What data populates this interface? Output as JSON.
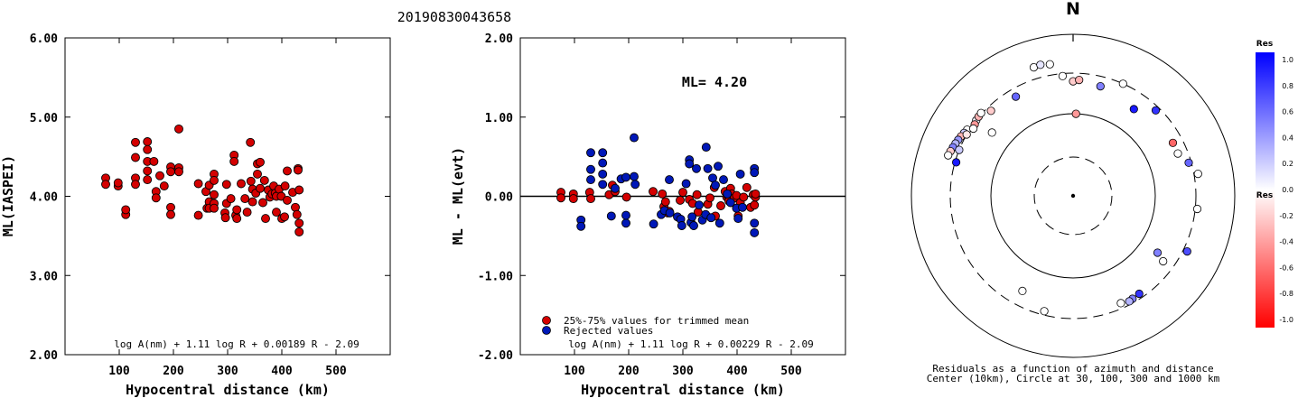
{
  "title": "20190830043658",
  "chart_data": [
    {
      "type": "scatter",
      "xlabel": "Hypocentral distance (km)",
      "ylabel": "ML(IASPEI)",
      "xlim": [
        0,
        600
      ],
      "ylim": [
        2.0,
        6.0
      ],
      "xticks": [
        "100",
        "200",
        "300",
        "400",
        "500"
      ],
      "yticks": [
        "2.00",
        "3.00",
        "4.00",
        "5.00",
        "6.00"
      ],
      "formula": "log A(nm) + 1.11 log R + 0.00189 R - 2.09",
      "series": [
        {
          "color": "#d40000",
          "points": [
            [
              75,
              4.23
            ],
            [
              75,
              4.15
            ],
            [
              98,
              4.13
            ],
            [
              98,
              4.17
            ],
            [
              112,
              3.77
            ],
            [
              112,
              3.83
            ],
            [
              130,
              4.68
            ],
            [
              130,
              4.49
            ],
            [
              130,
              4.23
            ],
            [
              130,
              4.15
            ],
            [
              152,
              4.69
            ],
            [
              152,
              4.59
            ],
            [
              152,
              4.44
            ],
            [
              152,
              4.32
            ],
            [
              152,
              4.21
            ],
            [
              164,
              4.44
            ],
            [
              168,
              4.06
            ],
            [
              168,
              3.98
            ],
            [
              175,
              4.26
            ],
            [
              183,
              4.13
            ],
            [
              195,
              4.37
            ],
            [
              195,
              4.31
            ],
            [
              195,
              3.86
            ],
            [
              195,
              3.77
            ],
            [
              210,
              4.85
            ],
            [
              210,
              4.36
            ],
            [
              210,
              4.31
            ],
            [
              246,
              4.16
            ],
            [
              246,
              3.76
            ],
            [
              260,
              4.06
            ],
            [
              262,
              3.85
            ],
            [
              266,
              4.14
            ],
            [
              266,
              3.93
            ],
            [
              266,
              3.85
            ],
            [
              275,
              4.28
            ],
            [
              275,
              4.2
            ],
            [
              275,
              4.02
            ],
            [
              275,
              3.91
            ],
            [
              275,
              3.85
            ],
            [
              295,
              3.79
            ],
            [
              296,
              3.73
            ],
            [
              298,
              4.15
            ],
            [
              298,
              3.91
            ],
            [
              306,
              3.97
            ],
            [
              312,
              4.52
            ],
            [
              312,
              4.44
            ],
            [
              315,
              3.76
            ],
            [
              317,
              3.83
            ],
            [
              317,
              3.72
            ],
            [
              325,
              4.16
            ],
            [
              332,
              3.97
            ],
            [
              336,
              3.8
            ],
            [
              342,
              4.68
            ],
            [
              343,
              4.19
            ],
            [
              346,
              4.09
            ],
            [
              346,
              3.93
            ],
            [
              352,
              4.04
            ],
            [
              355,
              4.41
            ],
            [
              355,
              4.28
            ],
            [
              360,
              4.43
            ],
            [
              360,
              4.1
            ],
            [
              365,
              3.92
            ],
            [
              368,
              4.2
            ],
            [
              370,
              3.72
            ],
            [
              375,
              4.08
            ],
            [
              378,
              3.99
            ],
            [
              382,
              4.03
            ],
            [
              385,
              4.13
            ],
            [
              388,
              4.04
            ],
            [
              390,
              4.0
            ],
            [
              390,
              3.8
            ],
            [
              395,
              4.09
            ],
            [
              399,
              4.0
            ],
            [
              400,
              3.72
            ],
            [
              405,
              3.74
            ],
            [
              406,
              4.13
            ],
            [
              410,
              4.32
            ],
            [
              410,
              3.95
            ],
            [
              420,
              4.05
            ],
            [
              425,
              3.86
            ],
            [
              428,
              3.77
            ],
            [
              430,
              4.35
            ],
            [
              430,
              4.33
            ],
            [
              432,
              4.08
            ],
            [
              432,
              3.66
            ],
            [
              432,
              3.55
            ]
          ]
        }
      ]
    },
    {
      "type": "scatter",
      "xlabel": "Hypocentral distance (km)",
      "ylabel": "ML - ML(evt)",
      "xlim": [
        0,
        600
      ],
      "ylim": [
        -2.0,
        2.0
      ],
      "xticks": [
        "100",
        "200",
        "300",
        "400",
        "500"
      ],
      "yticks": [
        "-2.00",
        "-1.00",
        "0.00",
        "1.00",
        "2.00"
      ],
      "annotation": "ML= 4.20",
      "legend": [
        {
          "label": "25%-75% values for trimmed mean",
          "color": "#d40000"
        },
        {
          "label": "Rejected values",
          "color": "#0018b8"
        }
      ],
      "formula": "log A(nm) + 1.11 log R + 0.00229 R - 2.09",
      "series": [
        {
          "name": "25%-75% values for trimmed mean",
          "color": "#d40000",
          "points": [
            [
              75,
              0.05
            ],
            [
              75,
              -0.02
            ],
            [
              98,
              0.03
            ],
            [
              98,
              -0.03
            ],
            [
              128,
              0.05
            ],
            [
              130,
              -0.03
            ],
            [
              164,
              0.02
            ],
            [
              170,
              0.14
            ],
            [
              175,
              0.06
            ],
            [
              196,
              -0.01
            ],
            [
              245,
              0.06
            ],
            [
              262,
              0.03
            ],
            [
              265,
              -0.13
            ],
            [
              268,
              -0.07
            ],
            [
              272,
              -0.21
            ],
            [
              275,
              -0.19
            ],
            [
              295,
              -0.05
            ],
            [
              300,
              0.05
            ],
            [
              312,
              -0.04
            ],
            [
              318,
              -0.09
            ],
            [
              326,
              0.02
            ],
            [
              328,
              -0.2
            ],
            [
              346,
              -0.1
            ],
            [
              350,
              -0.02
            ],
            [
              358,
              0.11
            ],
            [
              360,
              -0.25
            ],
            [
              370,
              -0.12
            ],
            [
              378,
              0.06
            ],
            [
              381,
              -0.01
            ],
            [
              383,
              0.01
            ],
            [
              385,
              -0.06
            ],
            [
              388,
              0.1
            ],
            [
              390,
              0.03
            ],
            [
              395,
              -0.02
            ],
            [
              399,
              0.01
            ],
            [
              402,
              -0.25
            ],
            [
              406,
              -0.08
            ],
            [
              412,
              -0.01
            ],
            [
              418,
              0.11
            ],
            [
              425,
              -0.14
            ],
            [
              430,
              0.02
            ],
            [
              432,
              -0.11
            ],
            [
              434,
              -0.01
            ],
            [
              434,
              0.03
            ]
          ]
        },
        {
          "name": "Rejected values",
          "color": "#0018b8",
          "points": [
            [
              112,
              -0.3
            ],
            [
              112,
              -0.38
            ],
            [
              130,
              0.55
            ],
            [
              130,
              0.34
            ],
            [
              130,
              0.21
            ],
            [
              152,
              0.55
            ],
            [
              152,
              0.42
            ],
            [
              152,
              0.28
            ],
            [
              152,
              0.15
            ],
            [
              168,
              -0.25
            ],
            [
              175,
              0.1
            ],
            [
              186,
              0.22
            ],
            [
              195,
              -0.34
            ],
            [
              195,
              0.24
            ],
            [
              195,
              -0.24
            ],
            [
              210,
              0.74
            ],
            [
              210,
              0.25
            ],
            [
              212,
              0.15
            ],
            [
              246,
              -0.35
            ],
            [
              260,
              -0.23
            ],
            [
              266,
              -0.18
            ],
            [
              275,
              0.21
            ],
            [
              276,
              -0.21
            ],
            [
              290,
              -0.26
            ],
            [
              296,
              -0.29
            ],
            [
              298,
              -0.37
            ],
            [
              306,
              0.16
            ],
            [
              312,
              0.46
            ],
            [
              312,
              0.41
            ],
            [
              315,
              -0.33
            ],
            [
              317,
              -0.26
            ],
            [
              320,
              -0.37
            ],
            [
              325,
              0.35
            ],
            [
              330,
              -0.11
            ],
            [
              336,
              -0.3
            ],
            [
              342,
              -0.23
            ],
            [
              343,
              0.62
            ],
            [
              346,
              0.35
            ],
            [
              352,
              -0.27
            ],
            [
              355,
              0.23
            ],
            [
              360,
              0.14
            ],
            [
              365,
              0.38
            ],
            [
              368,
              -0.34
            ],
            [
              375,
              0.21
            ],
            [
              382,
              0.03
            ],
            [
              388,
              -0.08
            ],
            [
              399,
              -0.15
            ],
            [
              402,
              -0.28
            ],
            [
              406,
              0.28
            ],
            [
              410,
              -0.14
            ],
            [
              432,
              0.35
            ],
            [
              432,
              0.3
            ],
            [
              432,
              -0.34
            ],
            [
              432,
              -0.46
            ]
          ]
        }
      ]
    },
    {
      "type": "scatter",
      "subtype": "polar",
      "north_label": "N",
      "caption_lines": [
        "Residuals as a function of azimuth and distance",
        "Center (10km), Circle at 30, 100, 300 and 1000 km"
      ],
      "circles_km": [
        30,
        100,
        300,
        1000
      ],
      "colorbar": {
        "title": "Res",
        "range": [
          -1.0,
          1.0
        ],
        "labels": [
          "1.0",
          "0.8",
          "0.6",
          "0.4",
          "0.2",
          "0.0",
          "-0.2",
          "-0.4",
          "-0.6",
          "-0.8",
          "-1.0"
        ]
      },
      "points": [
        {
          "azimuth": 308,
          "distance_km": 300,
          "residual": 0.05
        },
        {
          "azimuth": 302,
          "distance_km": 320,
          "residual": 0.0
        },
        {
          "azimuth": 300,
          "distance_km": 330,
          "residual": 0.2
        },
        {
          "azimuth": 298,
          "distance_km": 340,
          "residual": -0.3
        },
        {
          "azimuth": 296,
          "distance_km": 350,
          "residual": 0.4
        },
        {
          "azimuth": 294,
          "distance_km": 360,
          "residual": 0.3
        },
        {
          "azimuth": 292,
          "distance_km": 370,
          "residual": 0.5
        },
        {
          "azimuth": 290,
          "distance_km": 380,
          "residual": -0.2
        },
        {
          "azimuth": 288,
          "distance_km": 390,
          "residual": 0.0
        },
        {
          "azimuth": 306,
          "distance_km": 290,
          "residual": -0.4
        },
        {
          "azimuth": 310,
          "distance_km": 305,
          "residual": -0.3
        },
        {
          "azimuth": 312,
          "distance_km": 310,
          "residual": 0.0
        },
        {
          "azimuth": 304,
          "distance_km": 280,
          "residual": 0.0
        },
        {
          "azimuth": 316,
          "distance_km": 265,
          "residual": -0.2
        },
        {
          "azimuth": 300,
          "distance_km": 300,
          "residual": -0.1
        },
        {
          "azimuth": 292,
          "distance_km": 300,
          "residual": 0.2
        },
        {
          "azimuth": 286,
          "distance_km": 290,
          "residual": 0.9
        },
        {
          "azimuth": 308,
          "distance_km": 175,
          "residual": 0.0
        },
        {
          "azimuth": 330,
          "distance_km": 240,
          "residual": 0.6
        },
        {
          "azimuth": 343,
          "distance_km": 430,
          "residual": 0.0
        },
        {
          "azimuth": 346,
          "distance_km": 440,
          "residual": 0.1
        },
        {
          "azimuth": 350,
          "distance_km": 420,
          "residual": 0.0
        },
        {
          "azimuth": 355,
          "distance_km": 280,
          "residual": 0.0
        },
        {
          "azimuth": 0,
          "distance_km": 240,
          "residual": -0.2
        },
        {
          "azimuth": 3,
          "distance_km": 250,
          "residual": -0.3
        },
        {
          "azimuth": 2,
          "distance_km": 100,
          "residual": -0.4
        },
        {
          "azimuth": 14,
          "distance_km": 230,
          "residual": 0.5
        },
        {
          "azimuth": 24,
          "distance_km": 300,
          "residual": 0.0
        },
        {
          "azimuth": 35,
          "distance_km": 190,
          "residual": 0.9
        },
        {
          "azimuth": 44,
          "distance_km": 270,
          "residual": 0.8
        },
        {
          "azimuth": 62,
          "distance_km": 230,
          "residual": -0.6
        },
        {
          "azimuth": 68,
          "distance_km": 230,
          "residual": 0.0
        },
        {
          "azimuth": 74,
          "distance_km": 280,
          "residual": 0.6
        },
        {
          "azimuth": 80,
          "distance_km": 340,
          "residual": 0.0
        },
        {
          "azimuth": 96,
          "distance_km": 320,
          "residual": 0.0
        },
        {
          "azimuth": 116,
          "distance_km": 340,
          "residual": 0.7
        },
        {
          "azimuth": 124,
          "distance_km": 170,
          "residual": 0.5
        },
        {
          "azimuth": 126,
          "distance_km": 220,
          "residual": 0.0
        },
        {
          "azimuth": 146,
          "distance_km": 265,
          "residual": 0.8
        },
        {
          "azimuth": 150,
          "distance_km": 270,
          "residual": 0.5
        },
        {
          "azimuth": 152,
          "distance_km": 275,
          "residual": 0.3
        },
        {
          "azimuth": 156,
          "distance_km": 260,
          "residual": 0.0
        },
        {
          "azimuth": 194,
          "distance_km": 270,
          "residual": 0.0
        },
        {
          "azimuth": 208,
          "distance_km": 200,
          "residual": 0.0
        }
      ]
    }
  ]
}
